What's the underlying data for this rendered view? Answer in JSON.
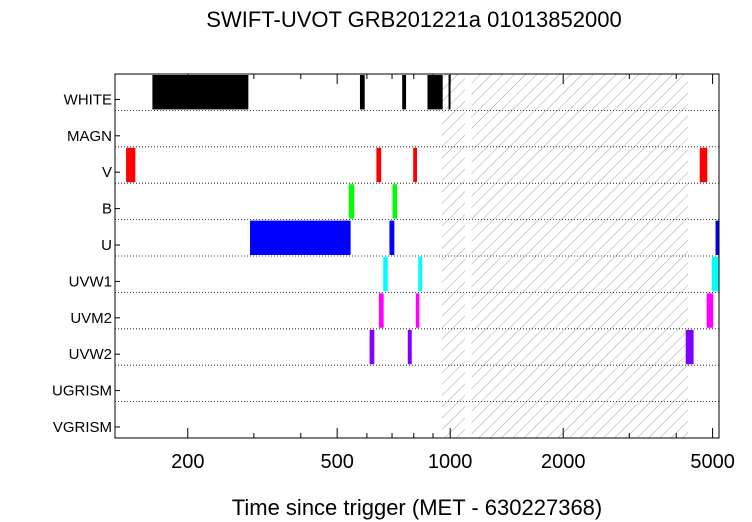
{
  "chart_data": {
    "type": "bar",
    "title": "SWIFT-UVOT GRB201221a 01013852000",
    "xlabel": "Time since trigger (MET - 630227368)",
    "x_scale": "log",
    "xlim": [
      128,
      5200
    ],
    "x_ticks": [
      {
        "value": 200,
        "label": "200"
      },
      {
        "value": 500,
        "label": "500"
      },
      {
        "value": 1000,
        "label": "1000"
      },
      {
        "value": 2000,
        "label": "2000"
      },
      {
        "value": 5000,
        "label": "5000"
      }
    ],
    "categories": [
      "WHITE",
      "MAGN",
      "V",
      "B",
      "U",
      "UVW1",
      "UVM2",
      "UVW2",
      "UGRISM",
      "VGRISM"
    ],
    "hatched_region": [
      950,
      4300
    ],
    "hatched_gap": [
      1095,
      1140
    ],
    "series": [
      {
        "category": "WHITE",
        "color": "#000000",
        "intervals": [
          [
            161,
            290
          ],
          [
            575,
            592
          ],
          [
            745,
            763
          ],
          [
            870,
            955
          ],
          [
            990,
            995
          ]
        ]
      },
      {
        "category": "MAGN",
        "color": "#000000",
        "intervals": []
      },
      {
        "category": "V",
        "color": "#ff0000",
        "intervals": [
          [
            137,
            145
          ],
          [
            636,
            655
          ],
          [
            797,
            816
          ],
          [
            4620,
            4840
          ]
        ]
      },
      {
        "category": "B",
        "color": "#00ff00",
        "intervals": [
          [
            537,
            555
          ],
          [
            702,
            722
          ]
        ]
      },
      {
        "category": "U",
        "color": "#0000ff",
        "intervals": [
          [
            293,
            543
          ],
          [
            689,
            710
          ],
          [
            5090,
            5200
          ]
        ]
      },
      {
        "category": "UVW1",
        "color": "#00ffff",
        "intervals": [
          [
            663,
            682
          ],
          [
            822,
            842
          ],
          [
            4980,
            5180
          ]
        ]
      },
      {
        "category": "UVM2",
        "color": "#ff00ff",
        "intervals": [
          [
            646,
            665
          ],
          [
            810,
            828
          ],
          [
            4820,
            5020
          ]
        ]
      },
      {
        "category": "UVW2",
        "color": "#8000ff",
        "intervals": [
          [
            610,
            628
          ],
          [
            771,
            790
          ],
          [
            4240,
            4450
          ]
        ]
      },
      {
        "category": "UGRISM",
        "color": "#000000",
        "intervals": []
      },
      {
        "category": "VGRISM",
        "color": "#000000",
        "intervals": []
      }
    ]
  }
}
